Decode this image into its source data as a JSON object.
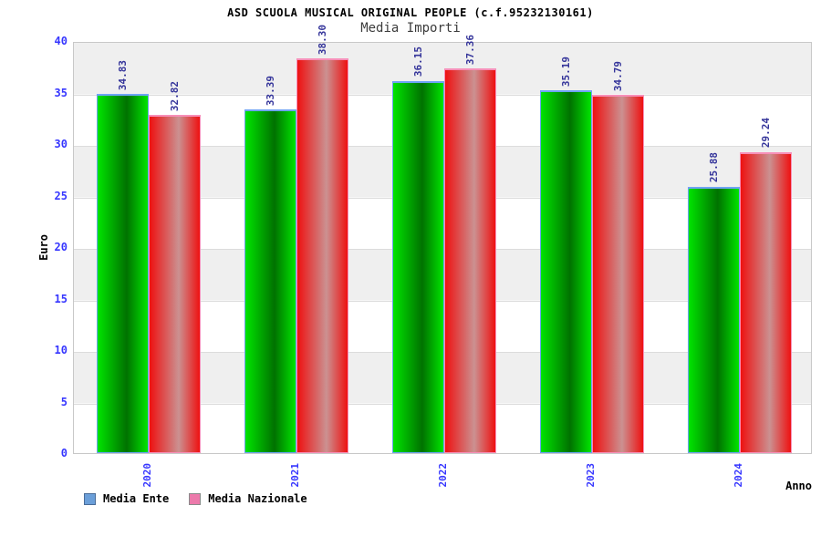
{
  "chart_data": {
    "type": "bar",
    "title": "ASD SCUOLA MUSICAL ORIGINAL PEOPLE (c.f.95232130161)",
    "subtitle": "Media Importi",
    "xlabel": "Anno",
    "ylabel": "Euro",
    "ylim": [
      0,
      40
    ],
    "yticks": [
      0,
      5,
      10,
      15,
      20,
      25,
      30,
      35,
      40
    ],
    "categories": [
      "2020",
      "2021",
      "2022",
      "2023",
      "2024"
    ],
    "series": [
      {
        "name": "Media Ente",
        "values": [
          34.83,
          33.39,
          36.15,
          35.19,
          25.88
        ],
        "labels": [
          "34.83",
          "33.39",
          "36.15",
          "35.19",
          "25.88"
        ],
        "bar_edge_color": "#00e400",
        "bar_center_color": "#007200",
        "bar_stroke": "#6fa3f5",
        "legend_swatch": "#6b9fd9",
        "legend_swatch_border": "#4a6d99"
      },
      {
        "name": "Media Nazionale",
        "values": [
          32.82,
          38.3,
          37.36,
          34.79,
          29.24
        ],
        "labels": [
          "32.82",
          "38.30",
          "37.36",
          "34.79",
          "29.24"
        ],
        "bar_edge_color": "#ee1111",
        "bar_center_color": "#cb9191",
        "bar_stroke": "#f78fb8",
        "legend_swatch": "#ec7aab",
        "legend_swatch_border": "#8a8a8a"
      }
    ],
    "colors": {
      "tick_label": "#3636ff",
      "value_label": "#34349a",
      "axis_title": "#000000",
      "band_gray": "#efefef",
      "band_white": "#ffffff",
      "plot_border": "#c8c8c8",
      "gridline": "#dcdcdc"
    },
    "grid": "horizontal-bands",
    "legend_position": "bottom-left"
  }
}
